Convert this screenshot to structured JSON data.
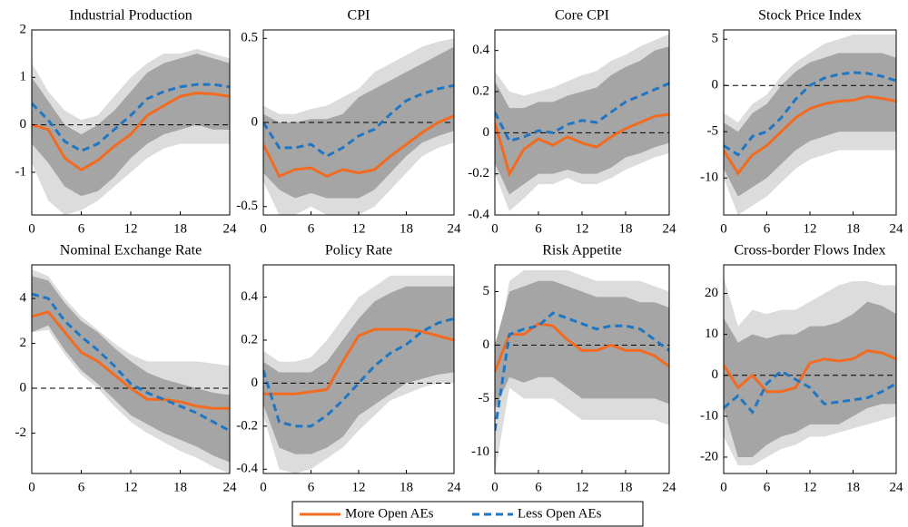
{
  "chart_data": [
    {
      "type": "line",
      "title": "Industrial Production",
      "x": [
        0,
        2,
        4,
        6,
        8,
        10,
        12,
        14,
        16,
        18,
        20,
        22,
        24
      ],
      "xlim": [
        0,
        24
      ],
      "xticks": [
        0,
        6,
        12,
        18,
        24
      ],
      "ylim": [
        -1.9,
        2
      ],
      "yticks": [
        -1,
        0,
        1,
        2
      ],
      "bands": [
        {
          "color": "#dcdcdc",
          "lower": [
            -0.8,
            -1.6,
            -1.9,
            -1.8,
            -1.6,
            -1.3,
            -1.0,
            -0.7,
            -0.5,
            -0.4,
            -0.4,
            -0.4,
            -0.4
          ],
          "upper": [
            1.3,
            0.7,
            0.3,
            0.1,
            0.2,
            0.6,
            1.0,
            1.3,
            1.5,
            1.5,
            1.6,
            1.5,
            1.4
          ]
        },
        {
          "color": "#a5a5a5",
          "lower": [
            -0.4,
            -0.8,
            -1.3,
            -1.5,
            -1.4,
            -1.1,
            -0.7,
            -0.4,
            -0.2,
            -0.1,
            0,
            -0.1,
            -0.1
          ],
          "upper": [
            1.0,
            0.5,
            0.0,
            -0.2,
            0.0,
            0.3,
            0.7,
            1.1,
            1.3,
            1.4,
            1.5,
            1.4,
            1.3
          ]
        }
      ],
      "series": [
        {
          "name": "More Open AEs",
          "color": "#f26b21",
          "dash": false,
          "values": [
            0,
            -0.1,
            -0.7,
            -0.95,
            -0.75,
            -0.45,
            -0.2,
            0.2,
            0.4,
            0.6,
            0.67,
            0.65,
            0.6
          ]
        },
        {
          "name": "Less Open AEs",
          "color": "#1f77c4",
          "dash": true,
          "values": [
            0.45,
            0.1,
            -0.35,
            -0.55,
            -0.4,
            -0.1,
            0.2,
            0.55,
            0.7,
            0.8,
            0.85,
            0.85,
            0.8
          ]
        }
      ]
    },
    {
      "type": "line",
      "title": "CPI",
      "x": [
        0,
        2,
        4,
        6,
        8,
        10,
        12,
        14,
        16,
        18,
        20,
        22,
        24
      ],
      "xlim": [
        0,
        24
      ],
      "xticks": [
        0,
        6,
        12,
        18,
        24
      ],
      "ylim": [
        -0.55,
        0.55
      ],
      "yticks": [
        -0.5,
        0,
        0.5
      ],
      "bands": [
        {
          "color": "#dcdcdc",
          "lower": [
            -0.35,
            -0.55,
            -0.55,
            -0.5,
            -0.55,
            -0.55,
            -0.55,
            -0.5,
            -0.4,
            -0.3,
            -0.2,
            -0.15,
            -0.12
          ],
          "upper": [
            0.1,
            0.05,
            0.05,
            0.08,
            0.1,
            0.15,
            0.2,
            0.3,
            0.35,
            0.4,
            0.45,
            0.48,
            0.5
          ]
        },
        {
          "color": "#a5a5a5",
          "lower": [
            -0.3,
            -0.4,
            -0.45,
            -0.42,
            -0.45,
            -0.45,
            -0.45,
            -0.4,
            -0.3,
            -0.2,
            -0.12,
            -0.08,
            -0.05
          ],
          "upper": [
            0.05,
            0,
            0,
            0.02,
            0.02,
            0.05,
            0.15,
            0.2,
            0.25,
            0.3,
            0.35,
            0.4,
            0.45
          ]
        }
      ],
      "series": [
        {
          "color": "#f26b21",
          "dash": false,
          "values": [
            -0.13,
            -0.32,
            -0.28,
            -0.27,
            -0.32,
            -0.28,
            -0.3,
            -0.28,
            -0.2,
            -0.13,
            -0.06,
            0,
            0.04
          ]
        },
        {
          "color": "#1f77c4",
          "dash": true,
          "values": [
            0,
            -0.15,
            -0.15,
            -0.13,
            -0.2,
            -0.15,
            -0.08,
            -0.04,
            0.05,
            0.13,
            0.17,
            0.2,
            0.22
          ]
        }
      ]
    },
    {
      "type": "line",
      "title": "Core CPI",
      "x": [
        0,
        2,
        4,
        6,
        8,
        10,
        12,
        14,
        16,
        18,
        20,
        22,
        24
      ],
      "xlim": [
        0,
        24
      ],
      "xticks": [
        0,
        6,
        12,
        18,
        24
      ],
      "ylim": [
        -0.4,
        0.5
      ],
      "yticks": [
        -0.4,
        -0.2,
        0,
        0.2,
        0.4
      ],
      "bands": [
        {
          "color": "#dcdcdc",
          "lower": [
            -0.2,
            -0.38,
            -0.32,
            -0.25,
            -0.25,
            -0.22,
            -0.25,
            -0.25,
            -0.22,
            -0.18,
            -0.15,
            -0.12,
            -0.1
          ],
          "upper": [
            0.3,
            0.2,
            0.18,
            0.2,
            0.22,
            0.25,
            0.28,
            0.3,
            0.35,
            0.38,
            0.42,
            0.45,
            0.48
          ]
        },
        {
          "color": "#a5a5a5",
          "lower": [
            -0.15,
            -0.3,
            -0.25,
            -0.2,
            -0.2,
            -0.18,
            -0.2,
            -0.2,
            -0.17,
            -0.12,
            -0.1,
            -0.07,
            -0.05
          ],
          "upper": [
            0.25,
            0.12,
            0.12,
            0.15,
            0.15,
            0.18,
            0.2,
            0.22,
            0.28,
            0.32,
            0.35,
            0.4,
            0.42
          ]
        }
      ],
      "series": [
        {
          "color": "#f26b21",
          "dash": false,
          "values": [
            0.05,
            -0.2,
            -0.08,
            -0.03,
            -0.06,
            -0.02,
            -0.05,
            -0.07,
            -0.02,
            0.02,
            0.05,
            0.08,
            0.09
          ]
        },
        {
          "color": "#1f77c4",
          "dash": true,
          "values": [
            0.1,
            -0.04,
            -0.02,
            0.01,
            0,
            0.04,
            0.06,
            0.05,
            0.1,
            0.15,
            0.18,
            0.21,
            0.24
          ]
        }
      ]
    },
    {
      "type": "line",
      "title": "Stock Price Index",
      "x": [
        0,
        2,
        4,
        6,
        8,
        10,
        12,
        14,
        16,
        18,
        20,
        22,
        24
      ],
      "xlim": [
        0,
        24
      ],
      "xticks": [
        0,
        6,
        12,
        18,
        24
      ],
      "ylim": [
        -14,
        6
      ],
      "yticks": [
        -10,
        -5,
        0,
        5
      ],
      "bands": [
        {
          "color": "#dcdcdc",
          "lower": [
            -10,
            -14,
            -13,
            -12,
            -10.5,
            -9,
            -8,
            -7.5,
            -7,
            -7,
            -7,
            -7,
            -7
          ],
          "upper": [
            -3,
            -4,
            -2,
            -1,
            1,
            2.5,
            3.5,
            4.5,
            5,
            5.5,
            5.5,
            5.5,
            5.5
          ]
        },
        {
          "color": "#a5a5a5",
          "lower": [
            -9,
            -12,
            -11,
            -10,
            -8.5,
            -7,
            -6,
            -5.5,
            -5,
            -5,
            -5,
            -5,
            -5
          ],
          "upper": [
            -4,
            -5,
            -3,
            -2,
            0,
            1.5,
            2.5,
            3,
            3.5,
            3.5,
            3.5,
            3.5,
            3
          ]
        }
      ],
      "series": [
        {
          "color": "#f26b21",
          "dash": false,
          "values": [
            -7,
            -9.5,
            -7.5,
            -6.5,
            -5,
            -3.5,
            -2.5,
            -2,
            -1.7,
            -1.6,
            -1.2,
            -1.4,
            -1.7
          ]
        },
        {
          "color": "#1f77c4",
          "dash": true,
          "values": [
            -6.5,
            -7.5,
            -5.5,
            -5,
            -3.5,
            -1.5,
            0,
            0.8,
            1.2,
            1.4,
            1.3,
            1,
            0.5
          ]
        }
      ]
    },
    {
      "type": "line",
      "title": "Nominal Exchange Rate",
      "x": [
        0,
        2,
        4,
        6,
        8,
        10,
        12,
        14,
        16,
        18,
        20,
        22,
        24
      ],
      "xlim": [
        0,
        24
      ],
      "xticks": [
        0,
        6,
        12,
        18,
        24
      ],
      "ylim": [
        -3.8,
        5.5
      ],
      "yticks": [
        -2,
        0,
        2,
        4
      ],
      "bands": [
        {
          "color": "#dcdcdc",
          "lower": [
            2.5,
            2.6,
            1.5,
            0.6,
            0,
            -0.8,
            -1.5,
            -2.0,
            -2.4,
            -2.8,
            -3.1,
            -3.5,
            -3.8
          ],
          "upper": [
            5.3,
            5.0,
            4.0,
            3.2,
            2.6,
            2.0,
            1.5,
            1.2,
            1.2,
            1.2,
            1.2,
            1.1,
            1.0
          ]
        },
        {
          "color": "#a5a5a5",
          "lower": [
            2.5,
            2.8,
            1.7,
            0.8,
            0.2,
            -0.5,
            -1.2,
            -1.6,
            -2.0,
            -2.3,
            -2.6,
            -3.0,
            -3.3
          ],
          "upper": [
            5,
            4.8,
            3.8,
            3.0,
            2.5,
            1.8,
            1.2,
            0.7,
            0.4,
            0.2,
            0,
            -0.2,
            -0.3
          ]
        }
      ],
      "series": [
        {
          "color": "#f26b21",
          "dash": false,
          "values": [
            3.2,
            3.4,
            2.5,
            1.6,
            1.2,
            0.6,
            0,
            -0.5,
            -0.5,
            -0.6,
            -0.8,
            -0.9,
            -0.9
          ]
        },
        {
          "color": "#1f77c4",
          "dash": true,
          "values": [
            4.2,
            4.0,
            3.0,
            2.3,
            1.7,
            1.0,
            0.2,
            -0.2,
            -0.5,
            -0.8,
            -1.1,
            -1.5,
            -1.9
          ]
        }
      ]
    },
    {
      "type": "line",
      "title": "Policy Rate",
      "x": [
        0,
        2,
        4,
        6,
        8,
        10,
        12,
        14,
        16,
        18,
        20,
        22,
        24
      ],
      "xlim": [
        0,
        24
      ],
      "xticks": [
        0,
        6,
        12,
        18,
        24
      ],
      "ylim": [
        -0.42,
        0.55
      ],
      "yticks": [
        -0.4,
        -0.2,
        0,
        0.2,
        0.4
      ],
      "bands": [
        {
          "color": "#dcdcdc",
          "lower": [
            -0.15,
            -0.4,
            -0.42,
            -0.4,
            -0.35,
            -0.3,
            -0.22,
            -0.15,
            -0.08,
            -0.05,
            -0.02,
            0,
            0
          ],
          "upper": [
            0.15,
            0.1,
            0.1,
            0.12,
            0.2,
            0.3,
            0.4,
            0.45,
            0.5,
            0.5,
            0.5,
            0.5,
            0.5
          ]
        },
        {
          "color": "#a5a5a5",
          "lower": [
            -0.1,
            -0.3,
            -0.33,
            -0.33,
            -0.3,
            -0.25,
            -0.15,
            -0.1,
            -0.05,
            0,
            0.02,
            0.04,
            0.05
          ],
          "upper": [
            0.1,
            0.05,
            0.05,
            0.05,
            0.1,
            0.2,
            0.3,
            0.38,
            0.42,
            0.45,
            0.45,
            0.45,
            0.45
          ]
        }
      ],
      "series": [
        {
          "color": "#f26b21",
          "dash": false,
          "values": [
            -0.05,
            -0.05,
            -0.05,
            -0.04,
            -0.03,
            0.1,
            0.22,
            0.25,
            0.25,
            0.25,
            0.24,
            0.22,
            0.2
          ]
        },
        {
          "color": "#1f77c4",
          "dash": true,
          "values": [
            0.06,
            -0.18,
            -0.2,
            -0.2,
            -0.15,
            -0.08,
            0,
            0.08,
            0.14,
            0.18,
            0.24,
            0.28,
            0.3
          ]
        }
      ]
    },
    {
      "type": "line",
      "title": "Risk Appetite",
      "x": [
        0,
        2,
        4,
        6,
        8,
        10,
        12,
        14,
        16,
        18,
        20,
        22,
        24
      ],
      "xlim": [
        0,
        24
      ],
      "xticks": [
        0,
        6,
        12,
        18,
        24
      ],
      "ylim": [
        -12,
        7.5
      ],
      "yticks": [
        -10,
        -5,
        0,
        5
      ],
      "bands": [
        {
          "color": "#dcdcdc",
          "lower": [
            -12,
            -4,
            -5,
            -5,
            -5,
            -6,
            -7,
            -7,
            -7,
            -7,
            -7,
            -7,
            -7.5
          ],
          "upper": [
            -2,
            6,
            7,
            7,
            7,
            7,
            6.5,
            6,
            6,
            6,
            6,
            5.5,
            5
          ]
        },
        {
          "color": "#a5a5a5",
          "lower": [
            -6,
            -3,
            -3.5,
            -3,
            -3,
            -4,
            -5,
            -5,
            -5,
            -5,
            -5,
            -5,
            -5.5
          ],
          "upper": [
            0,
            5,
            5.5,
            6,
            6,
            5.5,
            5,
            4.5,
            4.5,
            4.5,
            4,
            4,
            3.5
          ]
        }
      ],
      "series": [
        {
          "color": "#f26b21",
          "dash": false,
          "values": [
            -2.5,
            1,
            1,
            2,
            1.8,
            0.5,
            -0.5,
            -0.5,
            0,
            -0.5,
            -0.5,
            -1,
            -2
          ]
        },
        {
          "color": "#1f77c4",
          "dash": true,
          "values": [
            -8,
            1,
            1.5,
            1.8,
            3,
            2.5,
            2,
            1.5,
            1.8,
            1.8,
            1.5,
            0.5,
            -0.5
          ]
        }
      ]
    },
    {
      "type": "line",
      "title": "Cross-border Flows Index",
      "x": [
        0,
        2,
        4,
        6,
        8,
        10,
        12,
        14,
        16,
        18,
        20,
        22,
        24
      ],
      "xlim": [
        0,
        24
      ],
      "xticks": [
        0,
        6,
        12,
        18,
        24
      ],
      "ylim": [
        -24,
        27
      ],
      "yticks": [
        -20,
        -10,
        0,
        10,
        20
      ],
      "bands": [
        {
          "color": "#dcdcdc",
          "lower": [
            -15,
            -22,
            -22,
            -20,
            -18,
            -17,
            -15,
            -15,
            -14,
            -13,
            -12,
            -11,
            -10
          ],
          "upper": [
            24,
            12,
            16,
            15,
            16,
            16,
            18,
            20,
            22,
            23,
            23,
            22,
            22
          ]
        },
        {
          "color": "#a5a5a5",
          "lower": [
            -8,
            -20,
            -20,
            -17,
            -15,
            -14,
            -12,
            -12,
            -12,
            -10,
            -8,
            -7,
            -7
          ],
          "upper": [
            14,
            8,
            10,
            9,
            10,
            10,
            12,
            12,
            13,
            15,
            18,
            17,
            15
          ]
        }
      ],
      "series": [
        {
          "color": "#f26b21",
          "dash": false,
          "values": [
            2.5,
            -3,
            0,
            -4,
            -4,
            -3,
            3,
            4,
            3.5,
            4,
            6,
            5.5,
            4
          ]
        },
        {
          "color": "#1f77c4",
          "dash": true,
          "values": [
            -8,
            -5,
            -9,
            -2,
            1,
            -1,
            -3,
            -7,
            -6.5,
            -6,
            -5.5,
            -4,
            -2
          ]
        }
      ]
    }
  ]
}
